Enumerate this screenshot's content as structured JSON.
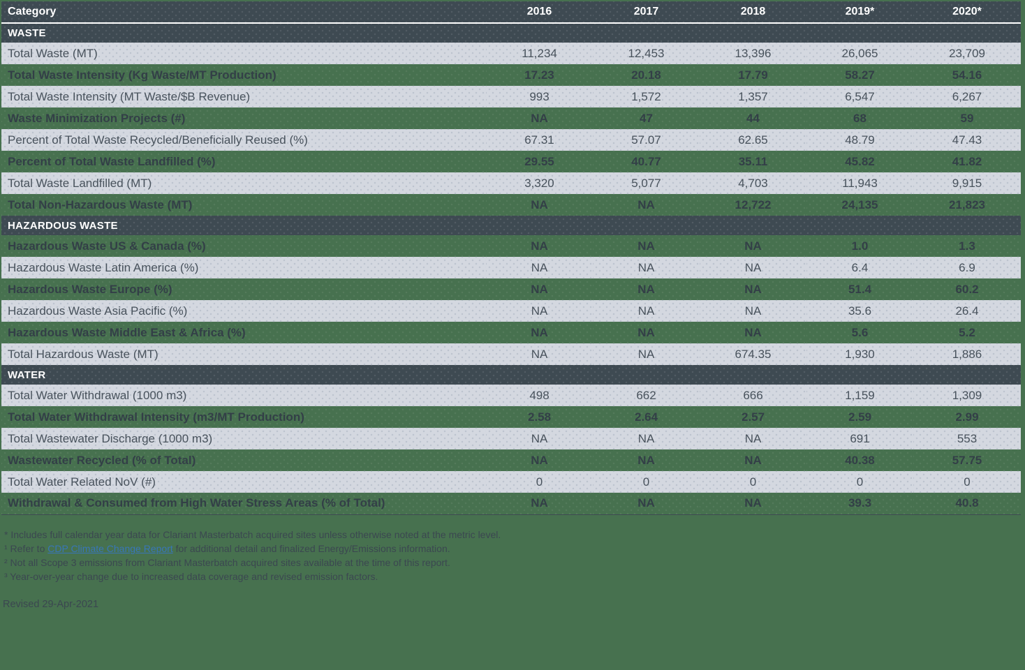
{
  "colors": {
    "page_background": "#47714F",
    "header_background": "#3E4A52",
    "light_row_background": "#D4D8E0",
    "header_text": "#FFFFFF",
    "light_row_text": "#48525C",
    "green_row_text": "#333F47",
    "footnote_text": "#3B4750",
    "link_blue": "#3876B8"
  },
  "table": {
    "columns": [
      "Category",
      "2016",
      "2017",
      "2018",
      "2019*",
      "2020*"
    ],
    "sections": [
      {
        "title": "WASTE",
        "rows": [
          {
            "label": "Total Waste (MT)",
            "values": [
              "11,234",
              "12,453",
              "13,396",
              "26,065",
              "23,709"
            ]
          },
          {
            "label": "Total Waste Intensity (Kg Waste/MT Production)",
            "values": [
              "17.23",
              "20.18",
              "17.79",
              "58.27",
              "54.16"
            ]
          },
          {
            "label": "Total Waste Intensity (MT Waste/$B Revenue)",
            "values": [
              "993",
              "1,572",
              "1,357",
              "6,547",
              "6,267"
            ]
          },
          {
            "label": "Waste Minimization Projects (#)",
            "values": [
              "NA",
              "47",
              "44",
              "68",
              "59"
            ]
          },
          {
            "label": "Percent of Total Waste Recycled/Beneficially Reused (%)",
            "values": [
              "67.31",
              "57.07",
              "62.65",
              "48.79",
              "47.43"
            ]
          },
          {
            "label": "Percent of Total Waste Landfilled (%)",
            "values": [
              "29.55",
              "40.77",
              "35.11",
              "45.82",
              "41.82"
            ]
          },
          {
            "label": "Total Waste Landfilled (MT)",
            "values": [
              "3,320",
              "5,077",
              "4,703",
              "11,943",
              "9,915"
            ]
          },
          {
            "label": "Total Non-Hazardous Waste (MT)",
            "values": [
              "NA",
              "NA",
              "12,722",
              "24,135",
              "21,823"
            ]
          }
        ]
      },
      {
        "title": "HAZARDOUS WASTE",
        "rows": [
          {
            "label": "Hazardous Waste US & Canada (%)",
            "values": [
              "NA",
              "NA",
              "NA",
              "1.0",
              "1.3"
            ]
          },
          {
            "label": "Hazardous Waste Latin America (%)",
            "values": [
              "NA",
              "NA",
              "NA",
              "6.4",
              "6.9"
            ]
          },
          {
            "label": "Hazardous Waste Europe (%)",
            "values": [
              "NA",
              "NA",
              "NA",
              "51.4",
              "60.2"
            ]
          },
          {
            "label": "Hazardous Waste Asia Pacific (%)",
            "values": [
              "NA",
              "NA",
              "NA",
              "35.6",
              "26.4"
            ]
          },
          {
            "label": "Hazardous Waste Middle East & Africa (%)",
            "values": [
              "NA",
              "NA",
              "NA",
              "5.6",
              "5.2"
            ]
          },
          {
            "label": "Total Hazardous Waste (MT)",
            "values": [
              "NA",
              "NA",
              "674.35",
              "1,930",
              "1,886"
            ]
          }
        ]
      },
      {
        "title": "WATER",
        "rows": [
          {
            "label": "Total Water Withdrawal (1000 m3)",
            "values": [
              "498",
              "662",
              "666",
              "1,159",
              "1,309"
            ]
          },
          {
            "label": "Total Water Withdrawal Intensity (m3/MT Production)",
            "values": [
              "2.58",
              "2.64",
              "2.57",
              "2.59",
              "2.99"
            ]
          },
          {
            "label": "Total Wastewater Discharge (1000 m3)",
            "values": [
              "NA",
              "NA",
              "NA",
              "691",
              "553"
            ]
          },
          {
            "label": "Wastewater Recycled (% of Total)",
            "values": [
              "NA",
              "NA",
              "NA",
              "40.38",
              "57.75"
            ]
          },
          {
            "label": "Total Water Related NoV (#)",
            "values": [
              "0",
              "0",
              "0",
              "0",
              "0"
            ]
          },
          {
            "label": "Withdrawal & Consumed from High Water Stress Areas (% of Total)",
            "values": [
              "NA",
              "NA",
              "NA",
              "39.3",
              "40.8"
            ]
          }
        ]
      }
    ]
  },
  "footnotes": [
    {
      "prefix": "* Includes full calendar year data for Clariant Masterbatch acquired sites unless otherwise noted at the metric level.",
      "link_text": "",
      "suffix": ""
    },
    {
      "prefix": "¹ Refer to ",
      "link_text": "CDP Climate Change Report",
      "suffix": " for additional detail and finalized Energy/Emissions information."
    },
    {
      "prefix": "² Not all Scope 3 emissions from Clariant Masterbatch acquired sites available at the time of this report.",
      "link_text": "",
      "suffix": ""
    },
    {
      "prefix": "³ Year-over-year change due to increased data coverage and revised emission factors.",
      "link_text": "",
      "suffix": ""
    }
  ],
  "revised": "Revised 29-Apr-2021"
}
